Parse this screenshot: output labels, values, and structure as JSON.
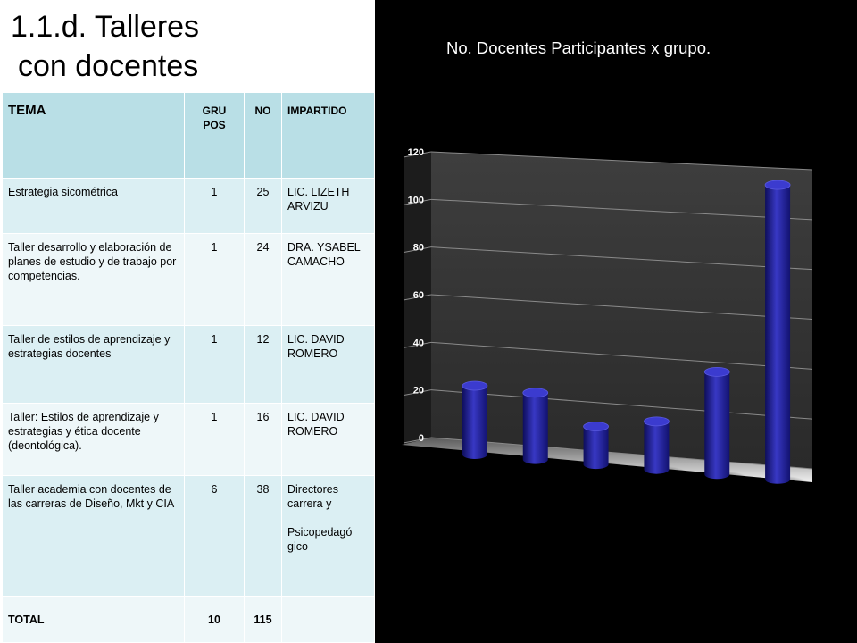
{
  "slide": {
    "title_line1": "1.1.d. Talleres",
    "title_line2": "con docentes"
  },
  "table": {
    "headers": {
      "tema": "TEMA",
      "grupos_line1": "GRU",
      "grupos_line2": "POS",
      "no": "NO",
      "impartido": "IMPARTIDO"
    },
    "rows": [
      {
        "tema": "Estrategia sicométrica",
        "grupos": "1",
        "no": "25",
        "impartido": [
          "LIC. LIZETH ARVIZU"
        ]
      },
      {
        "tema": "Taller desarrollo y elaboración de planes de estudio y de trabajo por competencias.",
        "grupos": "1",
        "no": "24",
        "impartido": [
          "DRA. YSABEL CAMACHO"
        ]
      },
      {
        "tema": "Taller de estilos de aprendizaje  y estrategias docentes",
        "grupos": "1",
        "no": "12",
        "impartido": [
          "LIC. DAVID ROMERO"
        ]
      },
      {
        "tema": "Taller: Estilos de aprendizaje y  estrategias  y ética docente (deontológica).",
        "grupos": "1",
        "no": "16",
        "impartido": [
          "LIC. DAVID ROMERO"
        ]
      },
      {
        "tema": "Taller academia con docentes de las carreras de Diseño, Mkt y CIA",
        "grupos": "6",
        "no": "38",
        "impartido": [
          "Directores carrera y",
          "Psicopedagó gico"
        ]
      }
    ],
    "total": {
      "label": "TOTAL",
      "grupos": "10",
      "no": "115"
    }
  },
  "chart_data": {
    "type": "bar",
    "style": "3d-cylinder",
    "title": "No. Docentes Participantes x grupo.",
    "categories": [
      "",
      "",
      "",
      "",
      "",
      ""
    ],
    "values": [
      25,
      24,
      12,
      16,
      38,
      115
    ],
    "ylim": [
      0,
      120
    ],
    "yticks": [
      "0",
      "20",
      "40",
      "60",
      "80",
      "100",
      "120"
    ],
    "grid": true,
    "legend": "none",
    "bar_color": "#2a2aa8",
    "background": "#000000"
  }
}
